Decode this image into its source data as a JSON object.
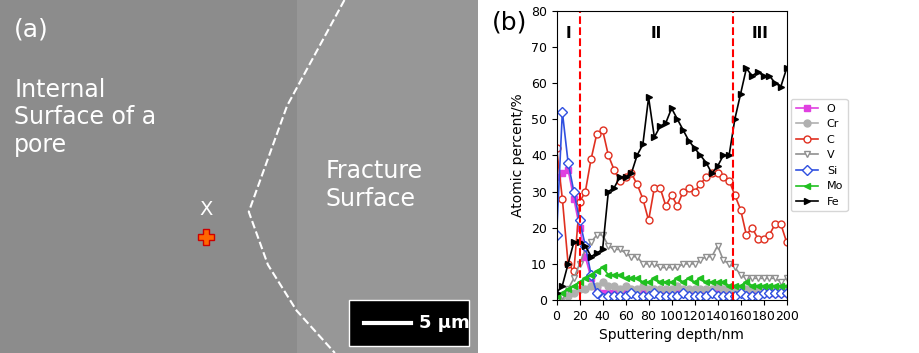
{
  "panel_a": {
    "label": "(a)",
    "region_texts": [
      "Internal\nSurface of a\npore",
      "Fracture\nSurface"
    ],
    "point_label": "X",
    "scale_bar": "5 μm"
  },
  "chart_data": {
    "type": "line",
    "panel_label": "(b)",
    "x_label": "Sputtering depth/nm",
    "y_label": "Atomic percent/%",
    "xlim": [
      0,
      200
    ],
    "xticks": [
      0,
      20,
      40,
      60,
      80,
      100,
      120,
      140,
      160,
      180,
      200
    ],
    "ylim": [
      0,
      80
    ],
    "yticks": [
      0,
      10,
      20,
      30,
      40,
      50,
      60,
      70,
      80
    ],
    "grid": false,
    "legend": "center left",
    "boundaries": [
      20,
      153
    ],
    "region_labels": [
      "I",
      "II",
      "III"
    ],
    "x": [
      0,
      5,
      10,
      15,
      20,
      25,
      30,
      35,
      40,
      45,
      50,
      55,
      60,
      65,
      70,
      75,
      80,
      85,
      90,
      95,
      100,
      105,
      110,
      115,
      120,
      125,
      130,
      135,
      140,
      145,
      150,
      155,
      160,
      165,
      170,
      175,
      180,
      185,
      190,
      195,
      200
    ],
    "series": [
      {
        "name": "O",
        "color": "#e040e0",
        "marker": "square",
        "values": [
          34,
          35,
          36,
          28,
          20,
          12,
          6,
          3,
          2,
          2,
          2,
          2,
          2,
          2,
          2,
          2,
          2,
          2,
          2,
          2,
          2,
          2,
          2,
          2,
          2,
          2,
          2,
          2,
          2,
          2,
          2,
          2,
          2,
          2,
          2,
          2,
          2,
          2,
          2,
          2,
          2
        ]
      },
      {
        "name": "Cr",
        "color": "#b0b0b0",
        "marker": "circle",
        "values": [
          0,
          1,
          1,
          2,
          3,
          3,
          4,
          4,
          5,
          4,
          4,
          3,
          4,
          3,
          3,
          4,
          3,
          3,
          3,
          3,
          3,
          4,
          3,
          3,
          3,
          3,
          3,
          3,
          4,
          3,
          3,
          3,
          3,
          3,
          3,
          3,
          3,
          3,
          3,
          3,
          3
        ]
      },
      {
        "name": "C",
        "color": "#e03020",
        "marker": "circle_open",
        "values": [
          42,
          28,
          10,
          8,
          27,
          30,
          39,
          46,
          47,
          40,
          36,
          33,
          34,
          35,
          32,
          28,
          22,
          31,
          31,
          26,
          29,
          26,
          30,
          31,
          30,
          32,
          34,
          35,
          35,
          34,
          33,
          29,
          25,
          18,
          20,
          17,
          17,
          18,
          21,
          21,
          16
        ]
      },
      {
        "name": "V",
        "color": "#909090",
        "marker": "triangle_down_open",
        "values": [
          0,
          1,
          3,
          6,
          10,
          14,
          16,
          18,
          18,
          15,
          14,
          14,
          13,
          12,
          12,
          10,
          10,
          10,
          9,
          9,
          9,
          9,
          10,
          10,
          10,
          11,
          12,
          12,
          15,
          11,
          10,
          9,
          7,
          6,
          6,
          6,
          6,
          6,
          6,
          5,
          6
        ]
      },
      {
        "name": "Si",
        "color": "#3050e0",
        "marker": "diamond_open",
        "values": [
          18,
          52,
          38,
          30,
          22,
          15,
          7,
          2,
          0.5,
          1,
          1,
          1,
          1,
          2,
          1,
          1,
          1,
          2,
          1,
          1,
          1,
          1,
          2,
          1,
          1,
          1,
          1,
          2,
          1,
          1,
          1,
          1,
          2,
          1,
          1,
          1,
          2,
          2,
          2,
          2,
          2
        ]
      },
      {
        "name": "Mo",
        "color": "#20c020",
        "marker": "triangle_left",
        "values": [
          1,
          2,
          3,
          4,
          5,
          6,
          7,
          8,
          9,
          7,
          7,
          7,
          6,
          6,
          6,
          5,
          5,
          6,
          5,
          5,
          5,
          6,
          5,
          6,
          5,
          6,
          5,
          5,
          5,
          5,
          4,
          4,
          4,
          5,
          4,
          4,
          4,
          4,
          4,
          4,
          4
        ]
      },
      {
        "name": "Fe",
        "color": "#000000",
        "marker": "triangle_right",
        "values": [
          2,
          4,
          10,
          16,
          16,
          15,
          12,
          13,
          14,
          30,
          31,
          34,
          34,
          35,
          40,
          43,
          56,
          45,
          48,
          49,
          53,
          50,
          47,
          44,
          42,
          40,
          38,
          35,
          37,
          40,
          40,
          50,
          57,
          64,
          62,
          63,
          62,
          62,
          60,
          59,
          64
        ]
      }
    ]
  }
}
